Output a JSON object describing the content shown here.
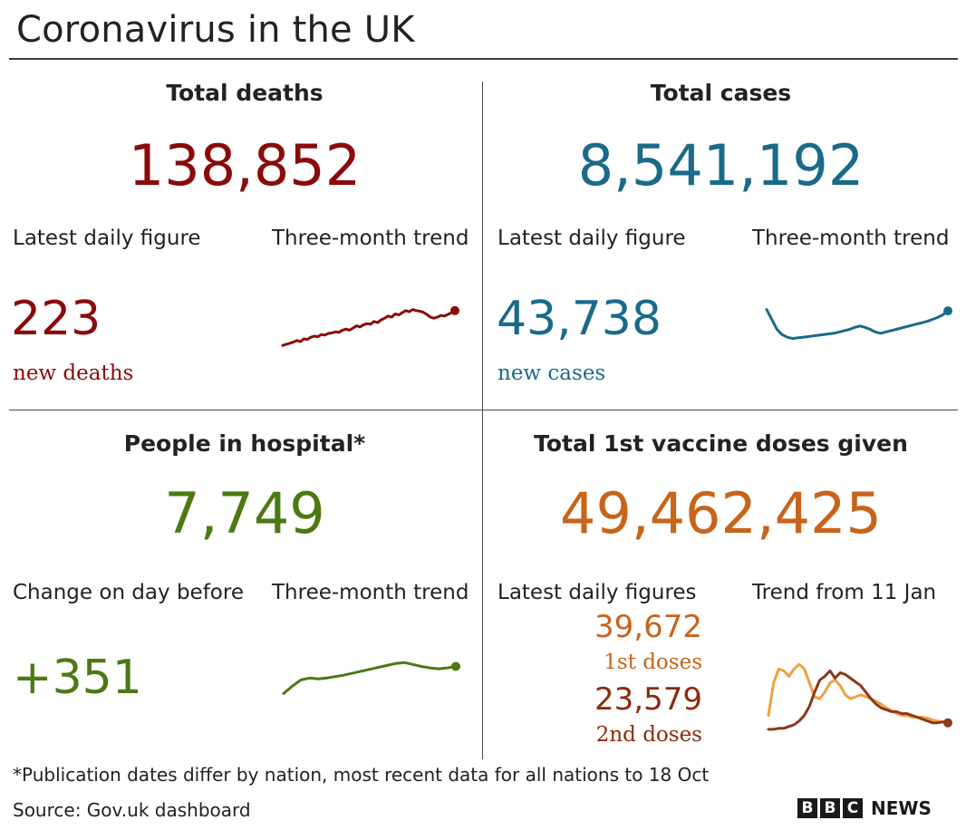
{
  "title": "Coronavirus in the UK",
  "colors": {
    "deaths": "#8a0b0b",
    "cases": "#1a6a8a",
    "hospital": "#4a7a12",
    "first_doses": "#f0a040",
    "second_doses": "#8a3a1a"
  },
  "deaths": {
    "heading": "Total deaths",
    "total": "138,852",
    "latest_label": "Latest daily figure",
    "trend_label": "Three-month trend",
    "daily": "223",
    "daily_unit": "new deaths"
  },
  "cases": {
    "heading": "Total cases",
    "total": "8,541,192",
    "latest_label": "Latest daily figure",
    "trend_label": "Three-month trend",
    "daily": "43,738",
    "daily_unit": "new cases"
  },
  "hospital": {
    "heading": "People in hospital*",
    "total": "7,749",
    "latest_label": "Change on day before",
    "trend_label": "Three-month trend",
    "daily": "+351"
  },
  "vaccine": {
    "heading": "Total 1st vaccine doses given",
    "total": "49,462,425",
    "latest_label": "Latest daily figures",
    "trend_label": "Trend from 11 Jan",
    "first_doses": "39,672",
    "first_label": "1st doses",
    "second_doses": "23,579",
    "second_label": "2nd doses"
  },
  "footnote": "*Publication dates differ by nation, most recent data for all nations to 18 Oct",
  "source": "Source: Gov.uk dashboard",
  "logo": {
    "letters": [
      "B",
      "B",
      "C"
    ],
    "word": "NEWS"
  },
  "chart_data": [
    {
      "type": "line",
      "name": "deaths-trend",
      "values": [
        8,
        10,
        12,
        14,
        17,
        15,
        20,
        19,
        23,
        25,
        24,
        28,
        27,
        30,
        31,
        33,
        32,
        36,
        38,
        36,
        40,
        44,
        42,
        46,
        48,
        47,
        52,
        50,
        55,
        58,
        62,
        60,
        66,
        64,
        68,
        72,
        70,
        74,
        72,
        71,
        69,
        65,
        60,
        58,
        60,
        63,
        62,
        65,
        68,
        72
      ]
    },
    {
      "type": "line",
      "name": "cases-trend",
      "values": [
        70,
        55,
        40,
        32,
        28,
        26,
        27,
        28,
        29,
        30,
        31,
        32,
        33,
        34,
        36,
        38,
        40,
        43,
        45,
        43,
        40,
        36,
        34,
        36,
        38,
        40,
        42,
        44,
        46,
        48,
        50,
        52,
        55,
        58,
        62,
        68
      ]
    },
    {
      "type": "line",
      "name": "hospital-trend",
      "values": [
        20,
        35,
        48,
        52,
        50,
        52,
        55,
        58,
        62,
        66,
        70,
        74,
        78,
        82,
        84,
        80,
        76,
        73,
        71,
        73,
        76
      ]
    },
    {
      "type": "line",
      "name": "vaccine-trend",
      "series": [
        {
          "values": [
            20,
            55,
            70,
            68,
            62,
            70,
            75,
            70,
            55,
            40,
            38,
            45,
            55,
            58,
            52,
            42,
            38,
            40,
            42,
            40,
            38,
            35,
            32,
            28,
            25,
            22,
            20,
            20,
            18,
            18,
            18,
            17,
            15,
            14,
            13,
            12
          ]
        },
        {
          "values": [
            5,
            5,
            6,
            6,
            8,
            10,
            14,
            20,
            30,
            45,
            58,
            62,
            68,
            60,
            66,
            64,
            60,
            56,
            52,
            45,
            38,
            32,
            28,
            26,
            24,
            24,
            22,
            22,
            20,
            18,
            16,
            14,
            12,
            12,
            13,
            12
          ]
        }
      ]
    }
  ]
}
